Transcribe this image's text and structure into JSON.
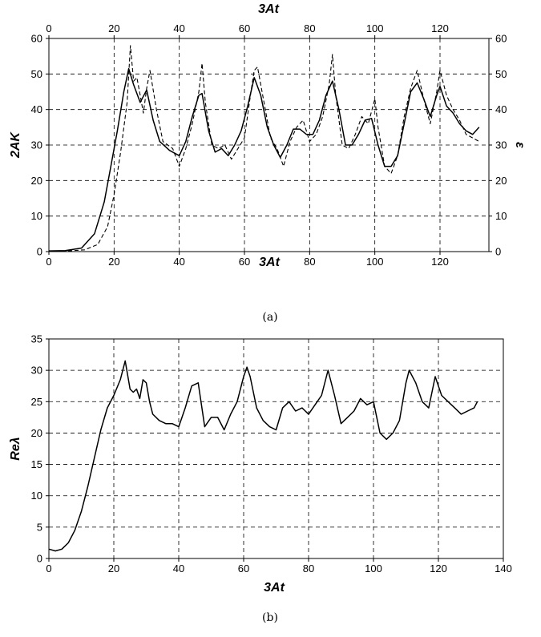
{
  "chart_data": [
    {
      "type": "line",
      "xlabel_top": "3At",
      "xlabel_bottom": "3At",
      "ylabel_left": "2AK",
      "ylabel_right": "ε",
      "xlim": [
        0,
        135
      ],
      "ylim": [
        0,
        60
      ],
      "x_ticks": [
        0,
        20,
        40,
        60,
        80,
        100,
        120
      ],
      "y_ticks": [
        0,
        10,
        20,
        30,
        40,
        50,
        60
      ],
      "grid": true,
      "caption": "(a)",
      "series": [
        {
          "style": "solid",
          "x": [
            0,
            5,
            10,
            14,
            17,
            19,
            21,
            23,
            24.5,
            26,
            28,
            30,
            32,
            34,
            37,
            40,
            42,
            44,
            46,
            47,
            49,
            51,
            53,
            55,
            57,
            59,
            61,
            63,
            65,
            67,
            69,
            71,
            73,
            75,
            77,
            79,
            81,
            83,
            85,
            87,
            89,
            91,
            93,
            95,
            97,
            99,
            101,
            103,
            105,
            107,
            109,
            111,
            113,
            115,
            117,
            119,
            120,
            122,
            124,
            126,
            128,
            130,
            132
          ],
          "y": [
            0.2,
            0.3,
            1,
            5,
            14,
            24,
            34,
            45,
            51.5,
            47,
            42,
            45.5,
            37,
            31,
            28.5,
            27,
            31,
            38,
            44,
            44.5,
            34,
            28,
            29,
            27,
            30,
            34,
            41,
            49,
            44,
            35,
            30,
            26.5,
            30,
            34.5,
            34.5,
            33,
            33,
            37,
            44,
            48,
            40,
            30,
            30,
            33,
            37,
            37.5,
            30,
            24,
            24,
            27,
            36,
            45,
            47.5,
            43,
            38,
            44,
            46.5,
            41,
            39,
            36,
            34,
            33,
            35
          ]
        },
        {
          "style": "dashed",
          "x": [
            0,
            6,
            11,
            15,
            18,
            20,
            22,
            24,
            25,
            26,
            27,
            28,
            29,
            30,
            31,
            33,
            35,
            38,
            40,
            42,
            44,
            46,
            47,
            48,
            50,
            52,
            54,
            56,
            58,
            60,
            62,
            63,
            64,
            66,
            68,
            70,
            72,
            74,
            76,
            78,
            80,
            82,
            84,
            86,
            87,
            88,
            90,
            92,
            94,
            96,
            98,
            100,
            101,
            103,
            105,
            107,
            109,
            111,
            113,
            115,
            117,
            119,
            120,
            122,
            124,
            126,
            128,
            130,
            132
          ],
          "y": [
            0.1,
            0.2,
            0.5,
            2,
            7,
            16,
            28,
            42,
            58,
            48,
            49,
            44,
            39,
            46,
            51,
            40,
            31,
            29,
            24,
            29,
            36,
            45,
            53,
            42,
            30,
            29,
            30,
            26,
            29,
            32,
            45,
            51,
            52,
            42,
            32,
            29,
            24,
            31,
            35,
            37,
            31,
            33,
            38,
            47,
            55.5,
            44,
            30,
            29,
            33,
            38,
            36,
            43,
            35,
            24,
            22,
            27,
            38,
            46,
            51,
            43,
            36,
            45,
            51,
            44,
            40,
            37,
            33,
            32,
            31
          ]
        }
      ]
    },
    {
      "type": "line",
      "xlabel": "3At",
      "ylabel": "Reλ",
      "xlim": [
        0,
        140
      ],
      "ylim": [
        0,
        35
      ],
      "x_ticks": [
        0,
        20,
        40,
        60,
        80,
        100,
        120,
        140
      ],
      "y_ticks": [
        0,
        5,
        10,
        15,
        20,
        25,
        30,
        35
      ],
      "grid": true,
      "caption": "(b)",
      "series": [
        {
          "style": "solid",
          "x": [
            0,
            2,
            4,
            6,
            8,
            10,
            12,
            14,
            16,
            18,
            20,
            22,
            23.5,
            25,
            26,
            27,
            28,
            29,
            30,
            31,
            32,
            34,
            36,
            38,
            40,
            42,
            44,
            46,
            48,
            50,
            52,
            54,
            56,
            58,
            60,
            61,
            62,
            64,
            66,
            68,
            70,
            72,
            74,
            76,
            78,
            80,
            82,
            84,
            86,
            88,
            90,
            92,
            94,
            96,
            98,
            100,
            102,
            104,
            106,
            108,
            110,
            111,
            113,
            115,
            117,
            119,
            121,
            123,
            125,
            127,
            129,
            131,
            132
          ],
          "y": [
            1.5,
            1.2,
            1.5,
            2.5,
            4.5,
            7.5,
            11.5,
            16,
            20.5,
            24,
            26,
            28.5,
            31.5,
            27,
            26.5,
            27,
            25.5,
            28.5,
            28,
            25,
            23,
            22,
            21.5,
            21.5,
            21,
            24,
            27.5,
            28,
            21,
            22.5,
            22.5,
            20.5,
            23,
            25,
            29,
            30.5,
            29,
            24,
            22,
            21,
            20.5,
            24,
            25,
            23.5,
            24,
            23,
            24.5,
            26,
            30,
            26,
            21.5,
            22.5,
            23.5,
            25.5,
            24.5,
            25,
            20,
            19,
            20,
            22,
            28,
            30,
            28,
            25,
            24,
            29,
            26,
            25,
            24,
            23,
            23.5,
            24,
            25
          ]
        }
      ]
    }
  ]
}
